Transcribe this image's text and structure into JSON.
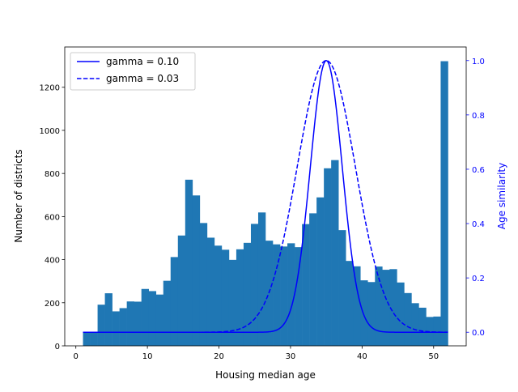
{
  "chart_data": {
    "type": "bar",
    "xlabel": "Housing median age",
    "ylabel": "Number of districts",
    "y2label": "Age similarity",
    "xlim": [
      -1.55,
      54.55
    ],
    "ylim": [
      0,
      1387
    ],
    "y2lim": [
      -0.05,
      1.05
    ],
    "xticks": [
      0,
      10,
      20,
      30,
      40,
      50
    ],
    "yticks": [
      0,
      200,
      400,
      600,
      800,
      1000,
      1200
    ],
    "y2ticks": [
      "0.0",
      "0.2",
      "0.4",
      "0.6",
      "0.8",
      "1.0"
    ],
    "grid": false,
    "histogram": {
      "range": [
        1,
        52
      ],
      "bins": 50,
      "color": "#1f77b4",
      "counts": [
        62,
        62,
        191,
        244,
        160,
        175,
        206,
        205,
        264,
        254,
        238,
        302,
        412,
        512,
        771,
        698,
        570,
        502,
        465,
        446,
        399,
        448,
        478,
        566,
        619,
        488,
        471,
        461,
        476,
        458,
        565,
        615,
        689,
        824,
        862,
        537,
        394,
        369,
        304,
        296,
        368,
        353,
        356,
        294,
        245,
        198,
        177,
        134,
        136,
        1321
      ]
    },
    "series": [
      {
        "name": "gamma = 0.10",
        "center": 35,
        "gamma": 0.1,
        "style": "solid",
        "color": "#0000ff"
      },
      {
        "name": "gamma = 0.03",
        "center": 35,
        "gamma": 0.03,
        "style": "dashed",
        "color": "#0000ff"
      }
    ],
    "legend_position": "top-left"
  }
}
